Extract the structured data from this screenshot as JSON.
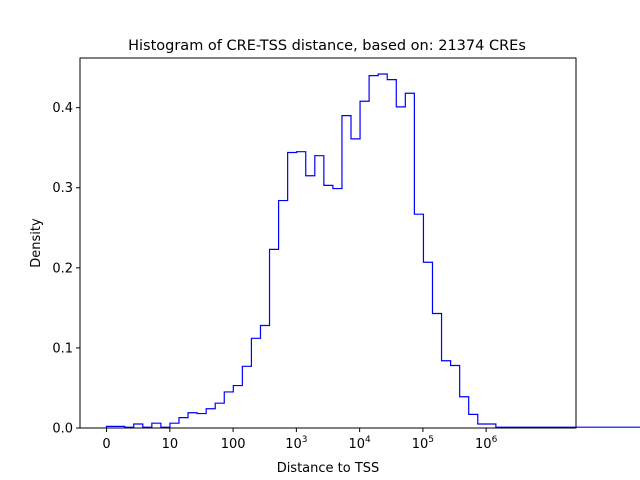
{
  "chart_data": {
    "type": "histogram",
    "title": "Histogram of CRE-TSS distance, based on: 21374 CREs",
    "xlabel": "Distance to TSS",
    "ylabel": "Density",
    "x_scale": "log10(distance+1)",
    "xlim": [
      -0.42,
      7.42
    ],
    "ylim": [
      0,
      0.462
    ],
    "grid": false,
    "line_color": "#0000ff",
    "x_ticks": [
      {
        "value": 0,
        "label": "0"
      },
      {
        "value": 1,
        "label": "10"
      },
      {
        "value": 2,
        "label": "100"
      },
      {
        "value": 3,
        "base": "10",
        "exp": "3"
      },
      {
        "value": 4,
        "base": "10",
        "exp": "4"
      },
      {
        "value": 5,
        "base": "10",
        "exp": "5"
      },
      {
        "value": 6,
        "base": "10",
        "exp": "6"
      }
    ],
    "y_ticks": [
      0.0,
      0.1,
      0.2,
      0.3,
      0.4
    ],
    "bin_start": 0.0,
    "bin_width": 0.1431,
    "densities": [
      0.002,
      0.002,
      0.001,
      0.005,
      0.001,
      0.006,
      0.001,
      0.006,
      0.013,
      0.019,
      0.018,
      0.024,
      0.031,
      0.045,
      0.053,
      0.077,
      0.112,
      0.128,
      0.223,
      0.284,
      0.344,
      0.345,
      0.315,
      0.34,
      0.303,
      0.299,
      0.39,
      0.361,
      0.408,
      0.44,
      0.442,
      0.435,
      0.401,
      0.418,
      0.267,
      0.207,
      0.143,
      0.084,
      0.078,
      0.039,
      0.017,
      0.005,
      0.005,
      0.001,
      0.001,
      0.001,
      0.001,
      0.001,
      0.001,
      0.001,
      0.001,
      0.001,
      0.001,
      0.001,
      0.001,
      0.001,
      0.001,
      0.001,
      0.001,
      0.001,
      0.001,
      0.001,
      0.001,
      0.001,
      0.001,
      0.001,
      0.001,
      0.001,
      0.001,
      0.006
    ]
  }
}
